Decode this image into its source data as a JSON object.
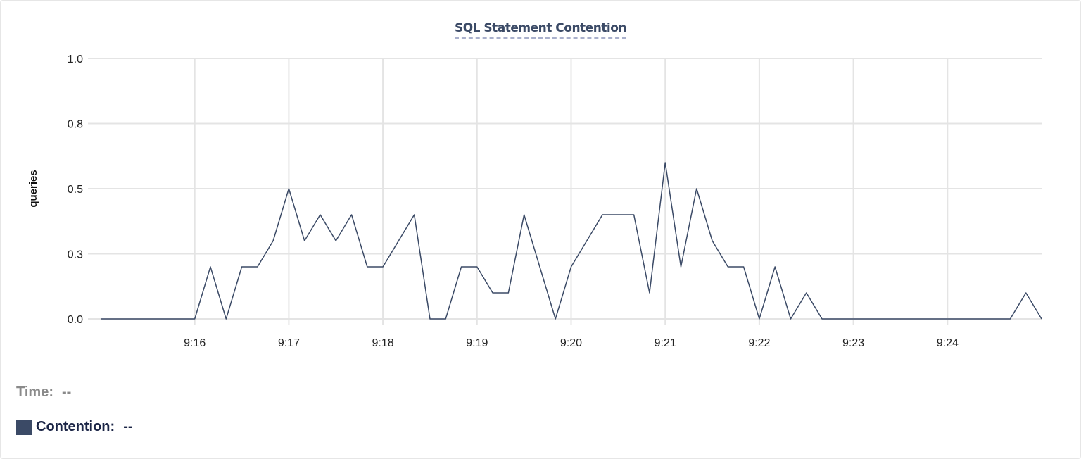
{
  "chart_data": {
    "type": "line",
    "title": "SQL Statement Contention",
    "xlabel": "",
    "ylabel": "queries",
    "ylim": [
      0,
      1.0
    ],
    "y_ticks": [
      0,
      0.25,
      0.5,
      0.75,
      1.0
    ],
    "y_tick_labels": [
      "0.0",
      "0.3",
      "0.5",
      "0.8",
      "1.0"
    ],
    "x_range": [
      "9:15:00",
      "9:25:00"
    ],
    "x_ticks": [
      "9:16",
      "9:17",
      "9:18",
      "9:19",
      "9:20",
      "9:21",
      "9:22",
      "9:23",
      "9:24"
    ],
    "x_interval_seconds": 10,
    "grid": true,
    "series": [
      {
        "name": "Contention",
        "color": "#3b4a66",
        "values": [
          0,
          0,
          0,
          0,
          0,
          0,
          0,
          0.2,
          0,
          0.2,
          0.2,
          0.3,
          0.5,
          0.3,
          0.4,
          0.3,
          0.4,
          0.2,
          0.2,
          0.3,
          0.4,
          0,
          0,
          0.2,
          0.2,
          0.1,
          0.1,
          0.4,
          0.2,
          0,
          0.2,
          0.3,
          0.4,
          0.4,
          0.4,
          0.1,
          0.6,
          0.2,
          0.5,
          0.3,
          0.2,
          0.2,
          0,
          0.2,
          0,
          0.1,
          0,
          0,
          0,
          0,
          0,
          0,
          0,
          0,
          0,
          0,
          0,
          0,
          0,
          0.1,
          0
        ]
      }
    ]
  },
  "legend": {
    "time_label": "Time:",
    "time_value": "--",
    "series_label": "Contention:",
    "series_value": "--"
  }
}
